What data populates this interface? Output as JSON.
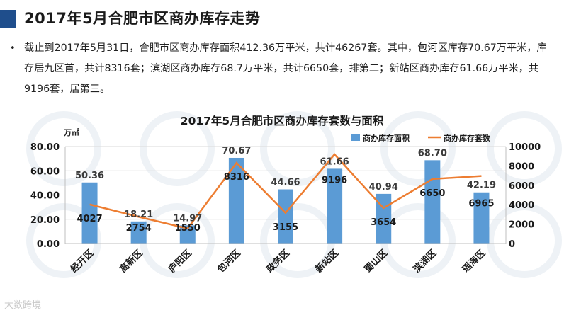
{
  "page": {
    "title": "2017年5月合肥市区商办库存走势",
    "summary": "截止到2017年5月31日，合肥市区商办库存面积412.36万平米，共计46267套。其中，包河区库存70.67万平米，库存居九区首，共计8316套；滨湖区商办库存68.7万平米，共计6650套，排第二；新站区商办库存61.66万平米，共9196套，居第三。",
    "bullet": "•",
    "footer_watermark": "大数跨境"
  },
  "colors": {
    "title_block": "#1f4e8c",
    "bar": "#5b9bd5",
    "line": "#ed7d31",
    "grid": "#d9d9d9",
    "watermark": "#e8b9b9"
  },
  "chart_data": {
    "type": "bar",
    "title": "2017年5月合肥市区商办库存套数与面积",
    "ylabel_left": "万㎡",
    "categories": [
      "经开区",
      "高新区",
      "庐阳区",
      "包河区",
      "政务区",
      "新站区",
      "蜀山区",
      "滨湖区",
      "瑶海区"
    ],
    "series": [
      {
        "name": "商办库存面积",
        "kind": "bar",
        "axis": "left",
        "values": [
          50.36,
          18.21,
          14.97,
          70.67,
          44.66,
          61.66,
          40.94,
          68.7,
          42.19
        ],
        "value_labels": [
          "50.36",
          "18.21",
          "14.97",
          "70.67",
          "44.66",
          "61.66",
          "40.94",
          "68.70",
          "42.19"
        ]
      },
      {
        "name": "商办库存套数",
        "kind": "line",
        "axis": "right",
        "values": [
          4027,
          2754,
          1550,
          8316,
          3155,
          9196,
          3654,
          6650,
          6965
        ],
        "value_labels": [
          "4027",
          "2754",
          "1550",
          "8316",
          "3155",
          "9196",
          "3654",
          "6650",
          "6965"
        ]
      }
    ],
    "ylim_left": [
      0,
      80
    ],
    "yticks_left": [
      "0.00",
      "20.00",
      "40.00",
      "60.00",
      "80.00"
    ],
    "ylim_right": [
      0,
      10000
    ],
    "yticks_right": [
      "0",
      "2000",
      "4000",
      "6000",
      "8000",
      "10000"
    ],
    "grid": true,
    "legend_position": "top-right"
  }
}
